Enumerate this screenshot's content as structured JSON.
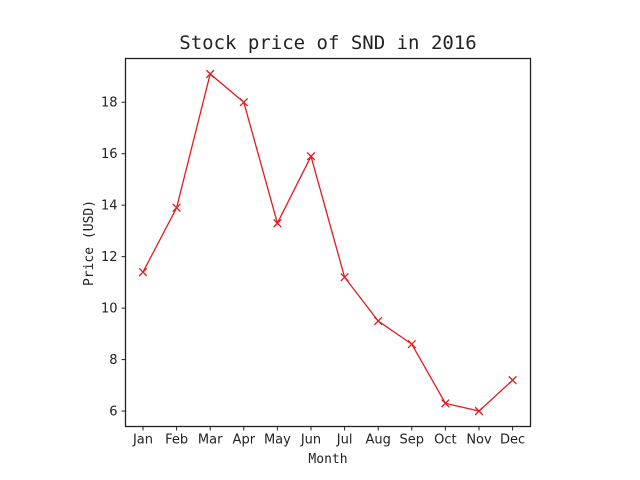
{
  "chart_data": {
    "type": "line",
    "title": "Stock price of SND in 2016",
    "xlabel": "Month",
    "ylabel": "Price (USD)",
    "categories": [
      "Jan",
      "Feb",
      "Mar",
      "Apr",
      "May",
      "Jun",
      "Jul",
      "Aug",
      "Sep",
      "Oct",
      "Nov",
      "Dec"
    ],
    "series": [
      {
        "values": [
          11.4,
          13.9,
          19.1,
          18.0,
          13.3,
          15.9,
          11.2,
          9.5,
          8.6,
          6.3,
          6.0,
          7.2
        ]
      }
    ],
    "yticks": [
      6,
      8,
      10,
      12,
      14,
      16,
      18
    ],
    "ylim": [
      5.4,
      19.7
    ],
    "grid": false,
    "marker": "x",
    "colors": {
      "line": "#e31a1c",
      "axes": "#222222"
    }
  }
}
